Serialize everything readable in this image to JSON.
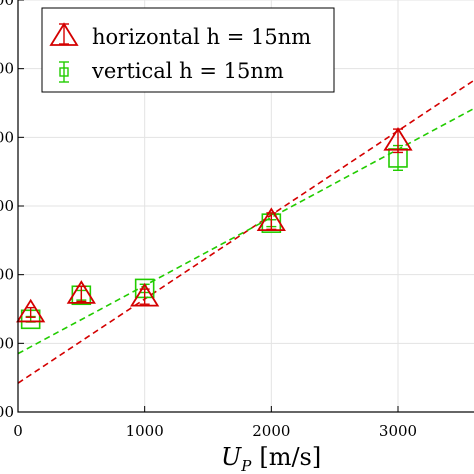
{
  "chart_data": {
    "type": "scatter",
    "xlabel": "U_P [m/s]",
    "xlabel_main": "U",
    "xlabel_sub": "P",
    "xlabel_units": "[m/s]",
    "xlim": [
      0,
      3600
    ],
    "ylim": [
      0,
      6
    ],
    "x_ticks": [
      0,
      1000,
      2000,
      3000
    ],
    "x_tick_labels": [
      "0",
      "1000",
      "2000",
      "3000"
    ],
    "y_ticks": [
      0,
      1,
      2,
      3,
      4,
      5,
      6
    ],
    "y_tick_labels": [
      "00",
      "00",
      "00",
      "00",
      "00",
      "00",
      "00"
    ],
    "grid": true,
    "legend_position": "top-left",
    "series": [
      {
        "name": "horizontal h = 15nm",
        "marker": "triangle",
        "color": "#d40000",
        "points": [
          {
            "x": 100,
            "y": 1.45,
            "err": 0.07
          },
          {
            "x": 500,
            "y": 1.72,
            "err": 0.11
          },
          {
            "x": 1000,
            "y": 1.68,
            "err": 0.11
          },
          {
            "x": 2000,
            "y": 2.78,
            "err": 0.12
          },
          {
            "x": 3000,
            "y": 3.95,
            "err": 0.17
          }
        ],
        "fit": {
          "x": [
            0,
            3600
          ],
          "y": [
            0.42,
            4.83
          ]
        }
      },
      {
        "name": "vertical h = 15nm",
        "marker": "square",
        "color": "#22cc00",
        "points": [
          {
            "x": 100,
            "y": 1.35,
            "err": 0.04
          },
          {
            "x": 500,
            "y": 1.7,
            "err": 0.07
          },
          {
            "x": 1000,
            "y": 1.8,
            "err": 0.06
          },
          {
            "x": 2000,
            "y": 2.75,
            "err": 0.05
          },
          {
            "x": 3000,
            "y": 3.7,
            "err": 0.18
          }
        ],
        "fit": {
          "x": [
            0,
            3600
          ],
          "y": [
            0.85,
            4.42
          ]
        }
      }
    ]
  }
}
